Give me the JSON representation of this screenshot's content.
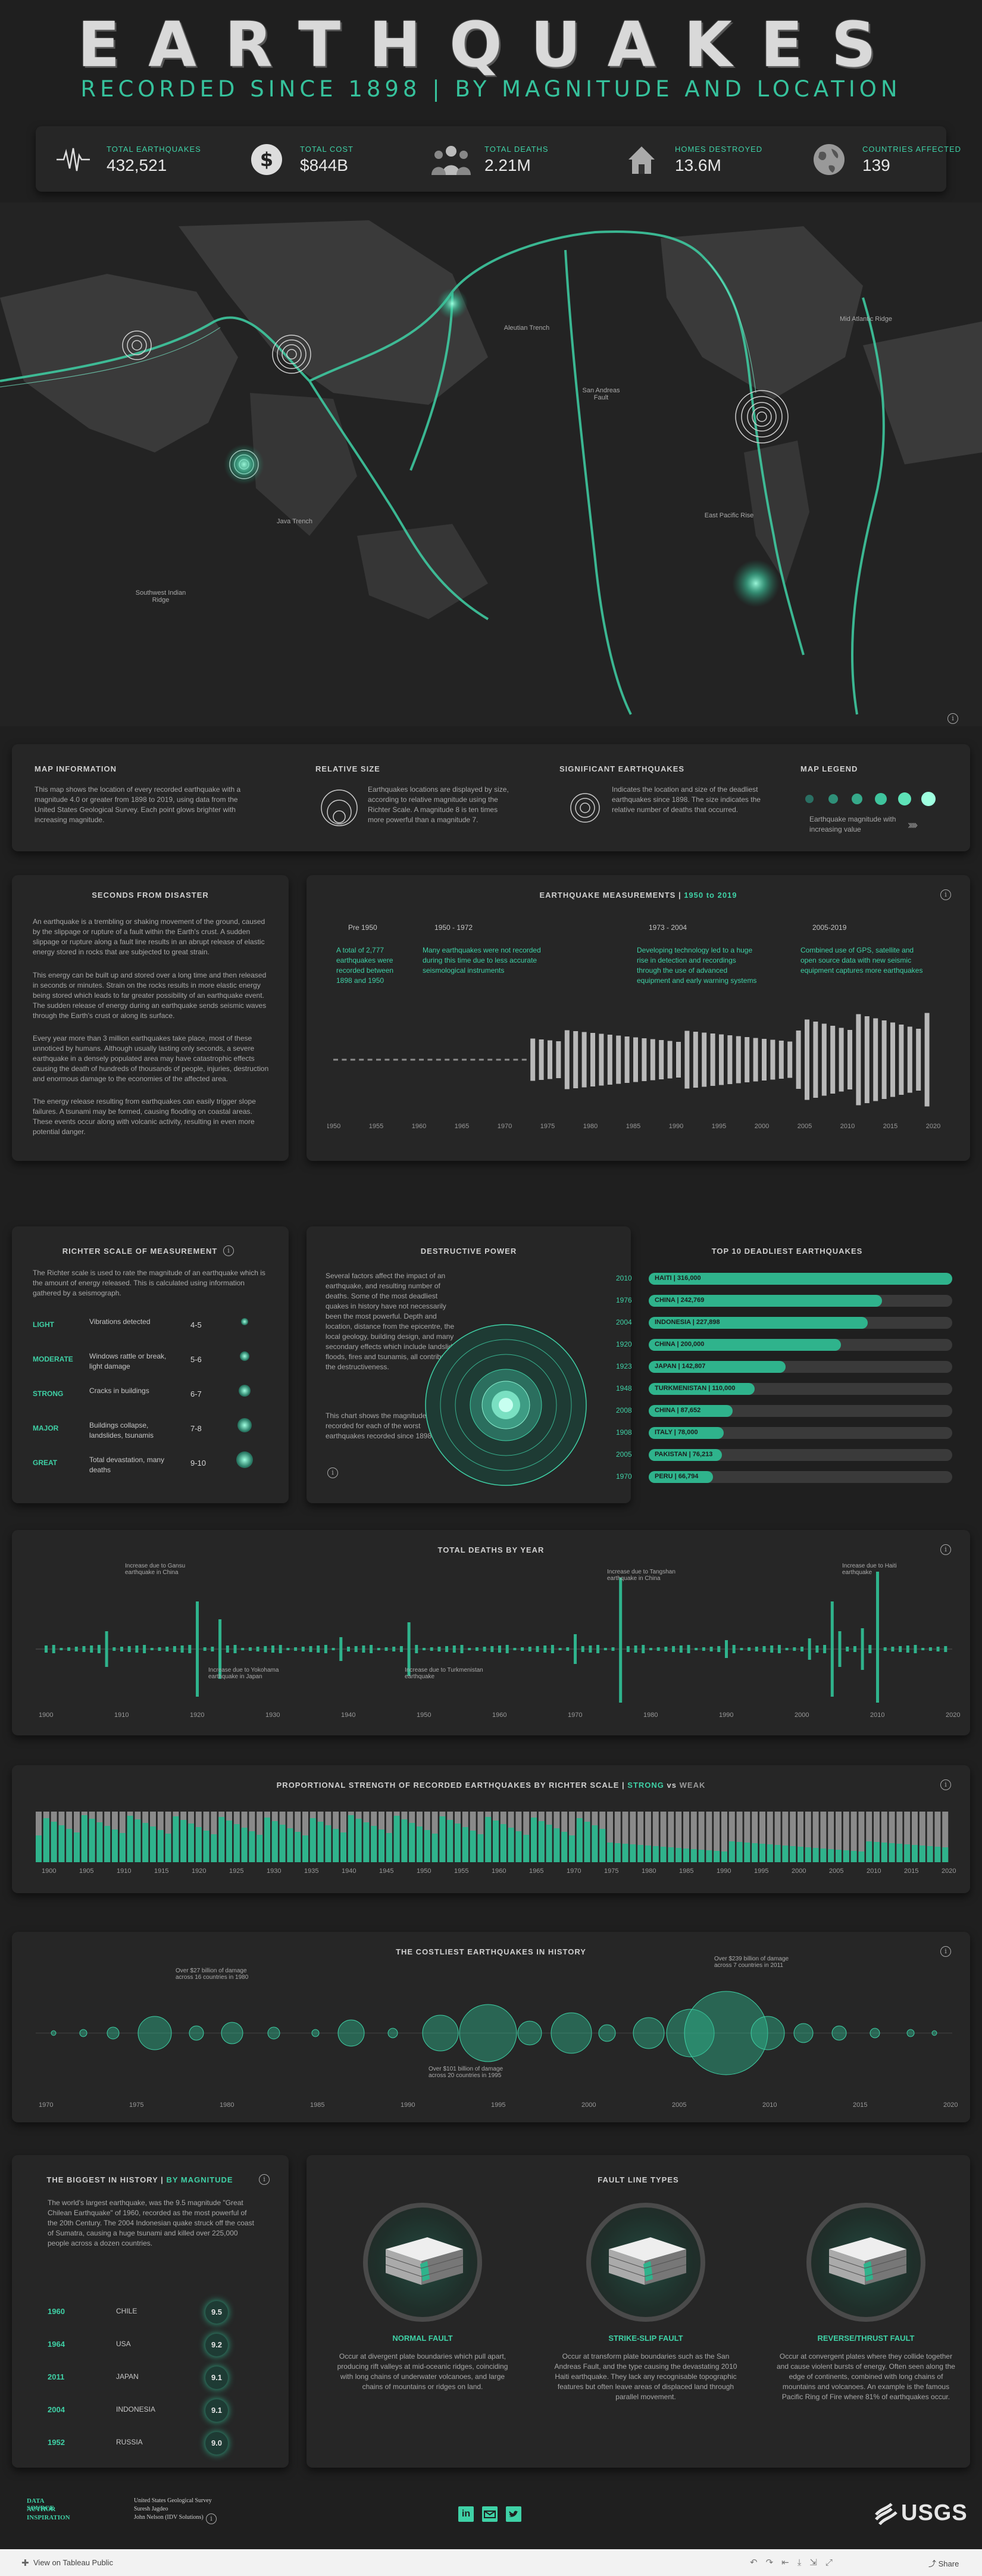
{
  "header": {
    "title": "EARTHQUAKES",
    "subtitle": "RECORDED SINCE 1898 | BY MAGNITUDE AND LOCATION"
  },
  "kpis": [
    {
      "label": "TOTAL EARTHQUAKES",
      "value": "432,521",
      "icon": "seismograph-icon"
    },
    {
      "label": "TOTAL COST",
      "value": "$844B",
      "icon": "dollar-icon"
    },
    {
      "label": "TOTAL DEATHS",
      "value": "2.21M",
      "icon": "people-icon"
    },
    {
      "label": "HOMES DESTROYED",
      "value": "13.6M",
      "icon": "house-icon"
    },
    {
      "label": "COUNTRIES AFFECTED",
      "value": "139",
      "icon": "globe-icon"
    }
  ],
  "map": {
    "labels": [
      "Aleutian Trench",
      "San Andreas Fault",
      "Mid Atlantic Ridge",
      "East Pacific Rise",
      "Java Trench",
      "Southwest Indian Ridge"
    ]
  },
  "legend_strip": {
    "map_info_title": "MAP INFORMATION",
    "map_info_text": "This map shows the location of every recorded earthquake with a magnitude 4.0 or greater from 1898 to 2019, using data from the United States Geological Survey. Each point glows brighter with increasing magnitude.",
    "relative_size_title": "RELATIVE SIZE",
    "relative_size_text": "Earthquakes locations are displayed by size, according to relative magnitude using the Richter Scale. A magnitude 8 is ten times more powerful than a magnitude 7.",
    "significant_title": "SIGNIFICANT EARTHQUAKES",
    "significant_text": "Indicates the location and size of the deadliest earthquakes since 1898. The size indicates the relative number of deaths that occurred.",
    "map_legend_title": "MAP LEGEND",
    "map_legend_text": "Earthquake magnitude with increasing value"
  },
  "seconds": {
    "title": "SECONDS FROM DISASTER",
    "p1": "An earthquake is a trembling or shaking movement of the ground, caused by the slippage or rupture of a fault within the Earth's crust. A sudden slippage or rupture along a fault line results in an abrupt release of elastic energy stored in rocks that are subjected to great strain.",
    "p2": "This energy can be built up and stored over a long time and then released in seconds or minutes. Strain on the rocks results in more elastic energy being stored which leads to far greater possibility of an earthquake event. The sudden release of energy during an earthquake sends seismic waves through the Earth's crust or along its surface.",
    "p3": "Every year more than 3 million earthquakes take place, most of these unnoticed by humans. Although usually lasting only seconds, a severe earthquake in a densely populated area may have catastrophic effects causing the death of hundreds of thousands of people, injuries, destruction and enormous damage to the economies of the affected area.",
    "p4": "The energy release resulting from earthquakes can easily trigger slope failures. A tsunami may be formed, causing flooding on coastal areas. These events occur along with volcanic activity, resulting in even more potential danger."
  },
  "measurements": {
    "title": "EARTHQUAKE MEASUREMENTS",
    "range": "1950 to 2019",
    "eras": [
      {
        "label": "Pre 1950",
        "text": "A total of 2,777 earthquakes were recorded between 1898 and 1950"
      },
      {
        "label": "1950 - 1972",
        "text": "Many earthquakes were not recorded during this time due to less accurate seismological instruments"
      },
      {
        "label": "1973 - 2004",
        "text": "Developing technology led to a huge rise in detection and recordings through the use of advanced equipment and early warning systems"
      },
      {
        "label": "2005-2019",
        "text": "Combined use of GPS, satellite and open source data with new seismic equipment captures more earthquakes"
      }
    ],
    "axis": [
      "1950",
      "1955",
      "1960",
      "1965",
      "1970",
      "1975",
      "1980",
      "1985",
      "1990",
      "1995",
      "2000",
      "2005",
      "2010",
      "2015",
      "2020"
    ]
  },
  "richter": {
    "title": "RICHTER SCALE OF MEASUREMENT",
    "intro": "The Richter scale is used to rate the magnitude of an earthquake which is the amount of energy released. This is calculated using information gathered by a seismograph.",
    "rows": [
      {
        "level": "LIGHT",
        "desc": "Vibrations detected",
        "range": "4-5"
      },
      {
        "level": "MODERATE",
        "desc": "Windows rattle or break, light damage",
        "range": "5-6"
      },
      {
        "level": "STRONG",
        "desc": "Cracks in buildings",
        "range": "6-7"
      },
      {
        "level": "MAJOR",
        "desc": "Buildings collapse, landslides, tsunamis",
        "range": "7-8"
      },
      {
        "level": "GREAT",
        "desc": "Total devastation, many deaths",
        "range": "9-10"
      }
    ]
  },
  "destructive": {
    "title": "DESTRUCTIVE POWER",
    "p1": "Several factors affect the impact of an earthquake, and resulting number of deaths. Some of the most deadliest quakes in history have not necessarily been the most powerful. Depth and location, distance from the epicentre, the local geology, building design, and many secondary effects which include landslides, floods, fires and tsunamis, all contribute to the destructiveness.",
    "p2": "This chart shows the magnitude recorded for each of the worst earthquakes recorded since 1898."
  },
  "deadliest": {
    "title": "TOP 10 DEADLIEST EARTHQUAKES",
    "rows": [
      {
        "year": "2010",
        "label": "HAITI | 316,000",
        "value": 316000
      },
      {
        "year": "1976",
        "label": "CHINA | 242,769",
        "value": 242769
      },
      {
        "year": "2004",
        "label": "INDONESIA | 227,898",
        "value": 227898
      },
      {
        "year": "1920",
        "label": "CHINA | 200,000",
        "value": 200000
      },
      {
        "year": "1923",
        "label": "JAPAN | 142,807",
        "value": 142807
      },
      {
        "year": "1948",
        "label": "TURKMENISTAN | 110,000",
        "value": 110000
      },
      {
        "year": "2008",
        "label": "CHINA | 87,652",
        "value": 87652
      },
      {
        "year": "1908",
        "label": "ITALY | 78,000",
        "value": 78000
      },
      {
        "year": "2005",
        "label": "PAKISTAN | 76,213",
        "value": 76213
      },
      {
        "year": "1970",
        "label": "PERU | 66,794",
        "value": 66794
      }
    ]
  },
  "deaths_by_year": {
    "title": "TOTAL DEATHS BY YEAR",
    "notes": [
      "Increase due to Gansu earthquake in China",
      "Increase due to Yokohama earthquake in Japan",
      "Increase due to Turkmenistan earthquake",
      "Increase due to Tangshan earthquake in China",
      "Increase due to Haiti earthquake"
    ],
    "axis": [
      "1900",
      "1910",
      "1920",
      "1930",
      "1940",
      "1950",
      "1960",
      "1970",
      "1980",
      "1990",
      "2000",
      "2010",
      "2020"
    ]
  },
  "strength": {
    "title": "PROPORTIONAL STRENGTH OF RECORDED EARTHQUAKES BY RICHTER SCALE |",
    "strong": "STRONG",
    "vs": "vs",
    "weak": "WEAK",
    "axis": [
      "1900",
      "1905",
      "1910",
      "1915",
      "1920",
      "1925",
      "1930",
      "1935",
      "1940",
      "1945",
      "1950",
      "1955",
      "1960",
      "1965",
      "1970",
      "1975",
      "1980",
      "1985",
      "1990",
      "1995",
      "2000",
      "2005",
      "2010",
      "2015",
      "2020"
    ]
  },
  "costliest": {
    "title": "THE COSTLIEST EARTHQUAKES IN HISTORY",
    "notes": [
      "Over $27 billion of damage across 16 countries in 1980",
      "Over $101 billion of damage across 20 countries in 1995",
      "Over $239 billion of damage across 7 countries in 2011"
    ],
    "axis": [
      "1970",
      "1975",
      "1980",
      "1985",
      "1990",
      "1995",
      "2000",
      "2005",
      "2010",
      "2015",
      "2020"
    ]
  },
  "biggest": {
    "title": "THE BIGGEST IN HISTORY |",
    "title_accent": "BY MAGNITUDE",
    "intro": "The world's largest earthquake, was the 9.5 magnitude \"Great Chilean Earthquake\" of 1960, recorded as the most powerful of the 20th Century. The 2004 Indonesian quake struck off the coast of Sumatra, causing a huge tsunami and killed over 225,000 people across a dozen countries.",
    "rows": [
      {
        "year": "1960",
        "country": "CHILE",
        "mag": "9.5"
      },
      {
        "year": "1964",
        "country": "USA",
        "mag": "9.2"
      },
      {
        "year": "2011",
        "country": "JAPAN",
        "mag": "9.1"
      },
      {
        "year": "2004",
        "country": "INDONESIA",
        "mag": "9.1"
      },
      {
        "year": "1952",
        "country": "RUSSIA",
        "mag": "9.0"
      }
    ]
  },
  "faults": {
    "title": "FAULT LINE TYPES",
    "items": [
      {
        "name": "NORMAL FAULT",
        "text": "Occur at divergent plate boundaries which pull apart, producing rift valleys at mid-oceanic ridges, coinciding with long chains of underwater volcanoes, and large chains of mountains or ridges on land."
      },
      {
        "name": "STRIKE-SLIP FAULT",
        "text": "Occur at transform plate boundaries such as the San Andreas Fault, and the type causing the devastating 2010 Haiti earthquake. They lack any recognisable topographic features but often leave areas of displaced land through parallel movement."
      },
      {
        "name": "REVERSE/THRUST FAULT",
        "text": "Occur at convergent plates where they collide together and cause violent bursts of energy. Often seen along the edge of continents, combined with long chains of mountains and volcanoes. An example is the famous Pacific Ring of Fire where 81% of earthquakes occur."
      }
    ]
  },
  "footer": {
    "labels": [
      "DATA SOURCE",
      "AUTHOR",
      "INSPIRATION"
    ],
    "values": [
      "United States Geological Survey",
      "Suresh Jagdeo",
      "John Nelson (IDV Solutions)"
    ],
    "brand": "USGS",
    "tableau": "View on Tableau Public",
    "share": "Share"
  },
  "colors": {
    "accent": "#3fd1a6",
    "panel": "#262626",
    "bg": "#1f1f1f"
  },
  "chart_data": {
    "type": "bar",
    "title": "TOP 10 DEADLIEST EARTHQUAKES",
    "categories": [
      "2010 HAITI",
      "1976 CHINA",
      "2004 INDONESIA",
      "1920 CHINA",
      "1923 JAPAN",
      "1948 TURKMENISTAN",
      "2008 CHINA",
      "1908 ITALY",
      "2005 PAKISTAN",
      "1970 PERU"
    ],
    "values": [
      316000,
      242769,
      227898,
      200000,
      142807,
      110000,
      87652,
      78000,
      76213,
      66794
    ]
  }
}
